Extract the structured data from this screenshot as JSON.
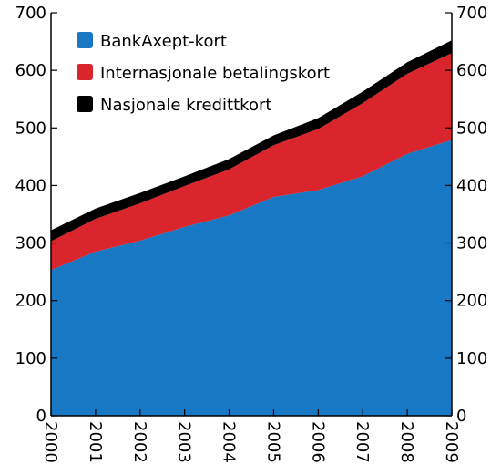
{
  "chart_data": {
    "type": "area",
    "stacked": true,
    "x": [
      "2000",
      "2001",
      "2002",
      "2003",
      "2004",
      "2005",
      "2006",
      "2007",
      "2008",
      "2009"
    ],
    "series": [
      {
        "name": "BankAxept-kort",
        "color": "#1878c4",
        "values": [
          253,
          285,
          304,
          328,
          348,
          380,
          392,
          416,
          455,
          479
        ]
      },
      {
        "name": "Internasjonale betalingskort",
        "color": "#d9252b",
        "values": [
          50,
          57,
          65,
          71,
          80,
          90,
          106,
          127,
          139,
          151
        ]
      },
      {
        "name": "Nasjonale kredittkort",
        "color": "#000000",
        "values": [
          19,
          18,
          18,
          17,
          18,
          17,
          19,
          20,
          20,
          22
        ]
      }
    ],
    "ylim": [
      0,
      700
    ],
    "yticks": [
      0,
      100,
      200,
      300,
      400,
      500,
      600,
      700
    ],
    "yticks_right": true,
    "grid": false,
    "legend_position": "top-left",
    "title": "",
    "xlabel": "",
    "ylabel": ""
  }
}
